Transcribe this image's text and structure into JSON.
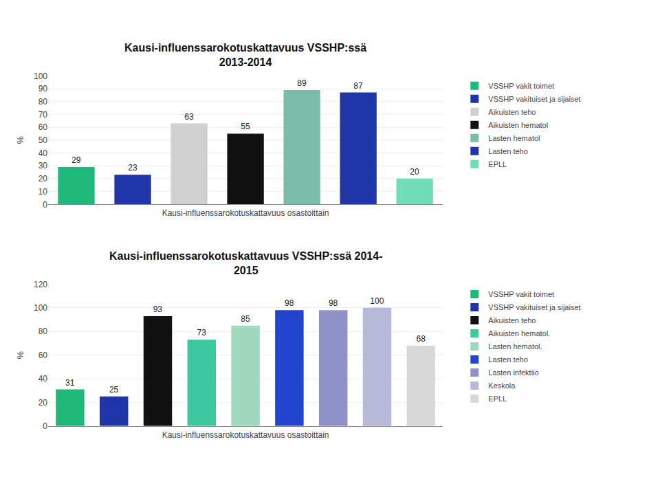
{
  "chart_data": [
    {
      "type": "bar",
      "title": "Kausi-influenssarokotuskattavuus VSSHP:ssä\n2013-2014",
      "categories": [
        "VSSHP vakit toimet",
        "VSSHP vakituiset ja sijaiset",
        "Aikuisten teho",
        "Aikuisten hematol",
        "Lasten hematol",
        "Lasten teho",
        "EPLL"
      ],
      "values": [
        29,
        23,
        63,
        55,
        89,
        87,
        20
      ],
      "colors": [
        "#1db87a",
        "#2035a8",
        "#d0d0d0",
        "#111111",
        "#7abcaa",
        "#2035a8",
        "#70ddb8"
      ],
      "xlabel": "Kausi-influenssarokotuskattavuus osastoittain",
      "ylabel": "%",
      "ylim": [
        0,
        100
      ],
      "yticks": [
        0,
        10,
        20,
        30,
        40,
        50,
        60,
        70,
        80,
        90,
        100
      ],
      "grid": true,
      "legend": "right",
      "data_labels": true,
      "tick_labels": "y"
    },
    {
      "type": "bar",
      "title": "Kausi-influenssarokotuskattavuus VSSHP:ssä 2014-\n2015",
      "categories": [
        "VSSHP vakit toimet",
        "VSSHP vakituiset ja sijaiset",
        "Aikuisten teho",
        "Aikuisten hematol.",
        "Lasten hematol.",
        "Lasten teho",
        "Lasten infektiio",
        "Keskola",
        "EPLL"
      ],
      "values": [
        31,
        25,
        93,
        73,
        85,
        98,
        98,
        100,
        68
      ],
      "colors": [
        "#1db87a",
        "#2035a8",
        "#111111",
        "#3dc8a0",
        "#a0d8c0",
        "#2244cc",
        "#9090c8",
        "#b8b8d8",
        "#d8d8d8"
      ],
      "xlabel": "Kausi-influenssarokotuskattavuus osastoittain",
      "ylabel": "%",
      "ylim": [
        0,
        120
      ],
      "yticks": [
        0,
        20,
        40,
        60,
        80,
        100,
        120
      ],
      "grid": true,
      "legend": "right",
      "data_labels": true,
      "tick_labels": "y"
    }
  ]
}
